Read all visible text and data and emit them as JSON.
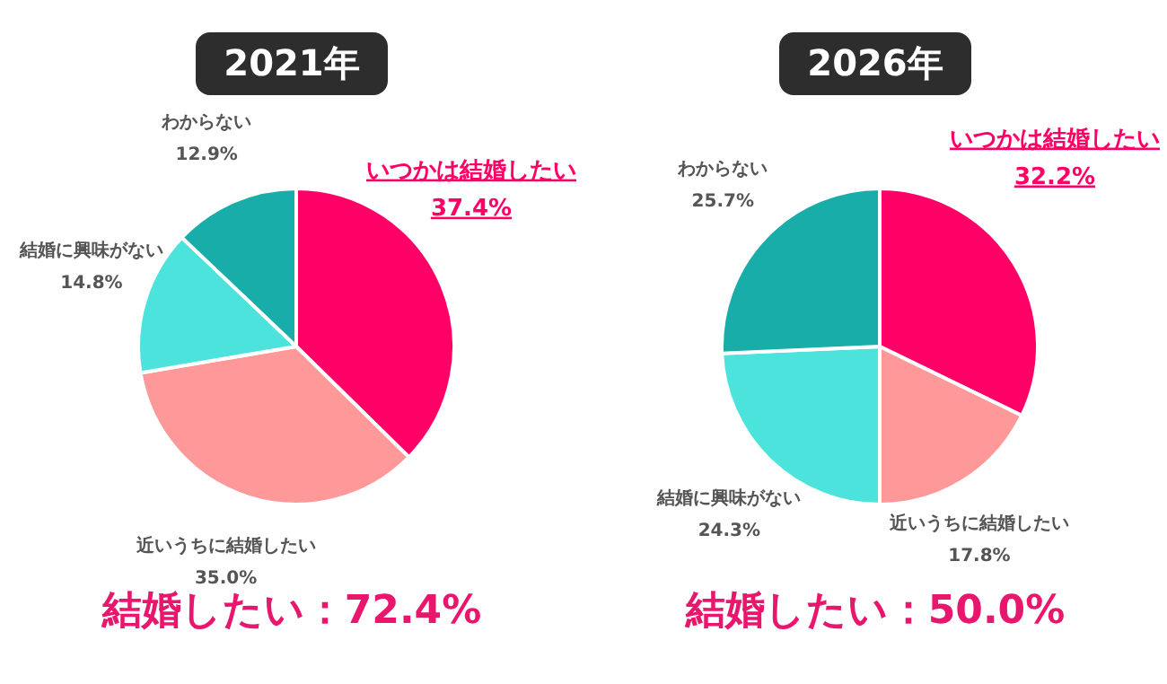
{
  "chart_data": [
    {
      "type": "pie",
      "title": "2021年",
      "categories": [
        "いつかは結婚したい",
        "近いうちに結婚したい",
        "結婚に興味がない",
        "わからない"
      ],
      "values": [
        37.4,
        35.0,
        14.8,
        12.9
      ],
      "value_labels": [
        "37.4%",
        "35.0%",
        "14.8%",
        "12.9%"
      ],
      "colors": [
        "#ff0066",
        "#ff9999",
        "#4de3dd",
        "#19adaa"
      ],
      "data_labels": true,
      "legend": false,
      "annotations": [
        "結婚したい：72.4%"
      ]
    },
    {
      "type": "pie",
      "title": "2026年",
      "categories": [
        "いつかは結婚したい",
        "近いうちに結婚したい",
        "結婚に興味がない",
        "わからない"
      ],
      "values": [
        32.2,
        17.8,
        24.3,
        25.7
      ],
      "value_labels": [
        "32.2%",
        "17.8%",
        "24.3%",
        "25.7%"
      ],
      "colors": [
        "#ff0066",
        "#ff9999",
        "#4de3dd",
        "#19adaa"
      ],
      "data_labels": true,
      "legend": false,
      "annotations": [
        "結婚したい：50.0%"
      ]
    }
  ]
}
